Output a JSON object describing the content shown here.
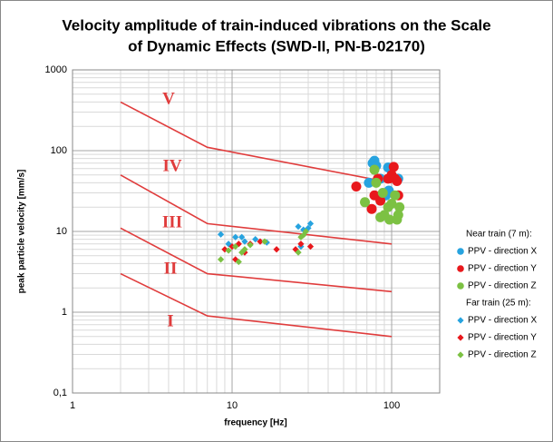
{
  "chart_data": {
    "type": "scatter",
    "title": [
      "Velocity amplitude of train-induced vibrations on the Scale",
      "of Dynamic Effects (SWD-II, PN-B-02170)"
    ],
    "x_label": "frequency [Hz]",
    "y_label": "peak particle velocity [mm/s]",
    "xscale": "log",
    "yscale": "log",
    "xlim": [
      1,
      200
    ],
    "ylim": [
      0.1,
      1000
    ],
    "xticks": [
      1,
      10,
      100
    ],
    "yticks": [
      1000,
      100,
      10,
      1,
      {
        "value": 0.1,
        "label": "0,1"
      }
    ],
    "grid": true,
    "minor_grid": true,
    "legend_position": "right",
    "boundaries": {
      "color": "#e03c3c",
      "lines": [
        {
          "x": [
            2,
            7,
            100
          ],
          "y": [
            400,
            110,
            40
          ]
        },
        {
          "x": [
            2,
            7,
            100
          ],
          "y": [
            50,
            12.5,
            7
          ]
        },
        {
          "x": [
            2,
            7,
            100
          ],
          "y": [
            11,
            3,
            1.8
          ]
        },
        {
          "x": [
            2,
            7,
            100
          ],
          "y": [
            3,
            0.9,
            0.5
          ]
        }
      ]
    },
    "zone_labels": [
      "V",
      "IV",
      "III",
      "II",
      "I"
    ],
    "series_groups": [
      {
        "name": "Near train (7 m):",
        "marker": "circle",
        "series": [
          {
            "name": "PPV - direction X",
            "color": "#27a3df",
            "x": [
              72,
              76,
              78,
              80,
              85,
              95,
              98,
              108,
              110,
              92,
              96
            ],
            "values": [
              40,
              70,
              75,
              65,
              45,
              62,
              60,
              44,
              45,
              28,
              32
            ]
          },
          {
            "name": "PPV - direction Y",
            "color": "#e8181c",
            "x": [
              60,
              75,
              78,
              82,
              95,
              100,
              103,
              105,
              108,
              110,
              85
            ],
            "values": [
              36,
              19,
              28,
              45,
              45,
              50,
              63,
              45,
              42,
              28,
              24
            ]
          },
          {
            "name": "PPV - direction Z",
            "color": "#7cc143",
            "x": [
              68,
              78,
              80,
              85,
              90,
              95,
              97,
              100,
              105,
              108,
              110,
              112,
              88
            ],
            "values": [
              23,
              58,
              40,
              15,
              16,
              20,
              14,
              22,
              28,
              14,
              16,
              20,
              30
            ]
          }
        ]
      },
      {
        "name": "Far train (25 m):",
        "marker": "diamond",
        "series": [
          {
            "name": "PPV - direction X",
            "color": "#27a3df",
            "x": [
              8.5,
              10.5,
              11.5,
              12,
              14,
              16.5,
              9.5,
              26,
              28,
              30,
              31,
              27
            ],
            "values": [
              9.2,
              8.5,
              8.5,
              7.5,
              8,
              7.3,
              7,
              11.5,
              10.5,
              11,
              12.5,
              6.5
            ]
          },
          {
            "name": "PPV - direction Y",
            "color": "#e8181c",
            "x": [
              9,
              10,
              11,
              12,
              13,
              15,
              19,
              25,
              27,
              31,
              10.5
            ],
            "values": [
              6,
              6.5,
              7,
              5.5,
              7,
              7.5,
              6,
              6,
              7,
              6.5,
              4.5
            ]
          },
          {
            "name": "PPV - direction Z",
            "color": "#7cc143",
            "x": [
              8.5,
              9.5,
              10.5,
              11,
              12,
              13,
              16,
              26,
              27,
              28,
              29,
              11.5
            ],
            "values": [
              4.5,
              5.8,
              6.5,
              4.2,
              6,
              6.8,
              7.5,
              5.5,
              8.5,
              9,
              10,
              5.5
            ]
          }
        ]
      }
    ]
  }
}
